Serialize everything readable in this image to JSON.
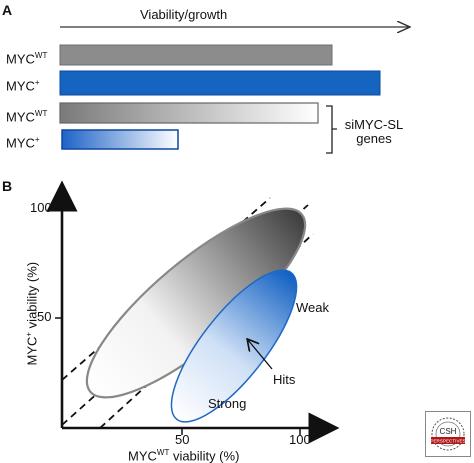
{
  "panel_a": {
    "letter": "A",
    "axis_title": "Viability/growth",
    "rows": [
      {
        "label_main": "MYC",
        "label_sup": "WT",
        "bar_style": "gray-solid",
        "level": 0.81
      },
      {
        "label_main": "MYC",
        "label_sup": "+",
        "bar_style": "blue-solid",
        "level": 0.92
      },
      {
        "label_main": "MYC",
        "label_sup": "WT",
        "bar_style": "gray-gradient",
        "level": 0.75
      },
      {
        "label_main": "MYC",
        "label_sup": "+",
        "bar_style": "blue-gradient",
        "level": 0.33
      }
    ],
    "bracket_label_line1": "siMYC-SL",
    "bracket_label_line2": "genes"
  },
  "panel_b": {
    "letter": "B",
    "y_ticks": [
      "100",
      "50"
    ],
    "x_ticks": [
      "50",
      "100"
    ],
    "y_label_main": "MYC",
    "y_label_sup": "+",
    "y_label_rest": " viability (%)",
    "x_label_main": "MYC",
    "x_label_sup": "WT",
    "x_label_rest": " viability (%)",
    "label_weak": "Weak",
    "label_hits": "Hits",
    "label_strong": "Strong"
  },
  "colors": {
    "gray_bar": "#8c8c8c",
    "blue_bar": "#1565c0",
    "bar_edge": "#555555",
    "blue_edge": "#0d47a1"
  },
  "logo": {
    "text_line1": "CSH",
    "text_line2": "PERSPECTIVES"
  }
}
